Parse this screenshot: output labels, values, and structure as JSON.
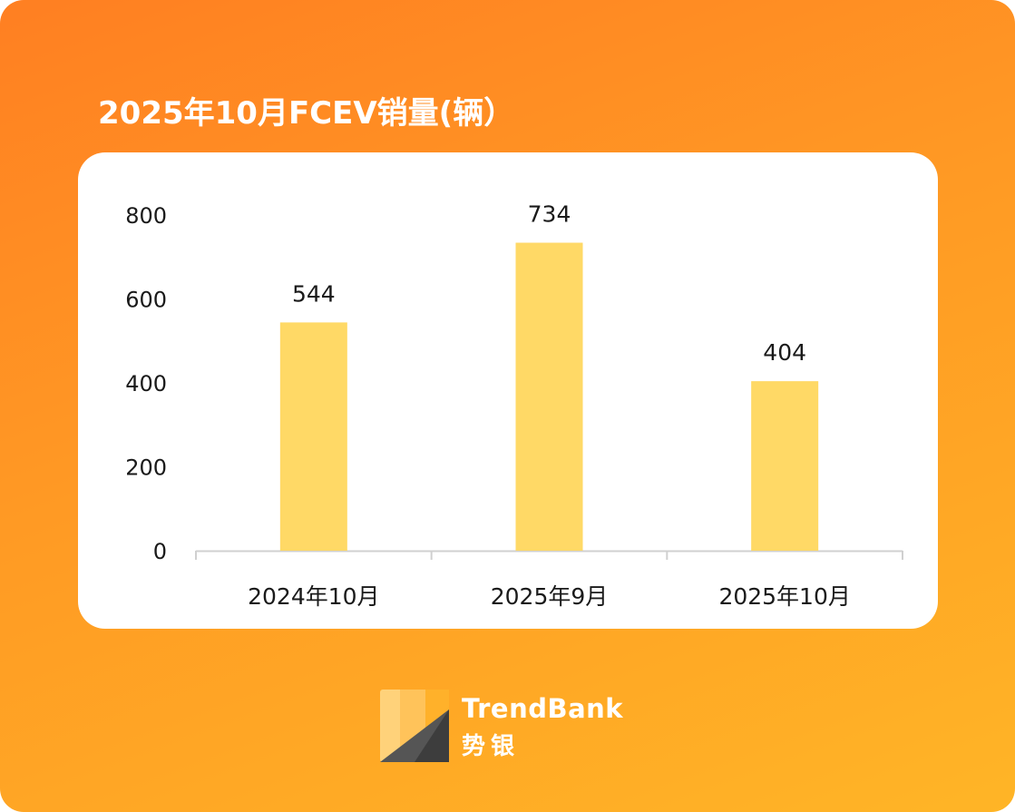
{
  "chart_data": {
    "type": "bar",
    "title": "2025年10月FCEV销量(辆）",
    "categories": [
      "2024年10月",
      "2025年9月",
      "2025年10月"
    ],
    "values": [
      544,
      734,
      404
    ],
    "value_labels": [
      "544",
      "734",
      "404"
    ],
    "ylim": [
      0,
      800
    ],
    "yticks": [
      0,
      200,
      400,
      600,
      800
    ],
    "ytick_labels": [
      "0",
      "200",
      "400",
      "600",
      "800"
    ],
    "xlabel": "",
    "ylabel": "",
    "grid": false,
    "bar_color": "#ffd966"
  },
  "brand": {
    "name": "TrendBank",
    "name_cn": "势银"
  },
  "colors": {
    "background_start": "#ff7f22",
    "background_end": "#ffb526",
    "panel": "#ffffff",
    "axis": "#d0d0d0"
  }
}
